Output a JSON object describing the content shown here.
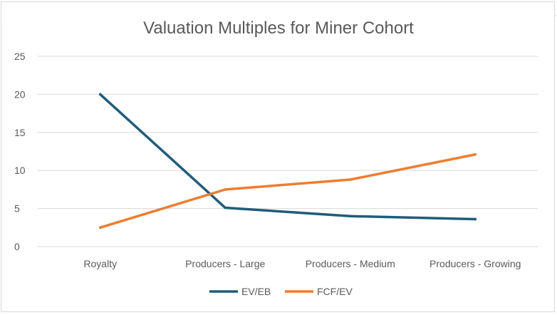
{
  "chart_data": {
    "type": "line",
    "title": "Valuation Multiples for Miner Cohort",
    "categories": [
      "Royalty",
      "Producers - Large",
      "Producers - Medium",
      "Producers - Growing"
    ],
    "series": [
      {
        "name": "EV/EB",
        "color": "#1f5c7a",
        "values": [
          20,
          5.1,
          4.0,
          3.6
        ]
      },
      {
        "name": "FCF/EV",
        "color": "#ed7d31",
        "values": [
          2.5,
          7.5,
          8.8,
          12.1
        ]
      }
    ],
    "ylim": [
      0,
      25
    ],
    "yticks": [
      0,
      5,
      10,
      15,
      20,
      25
    ],
    "grid": true,
    "legend": "bottom"
  }
}
